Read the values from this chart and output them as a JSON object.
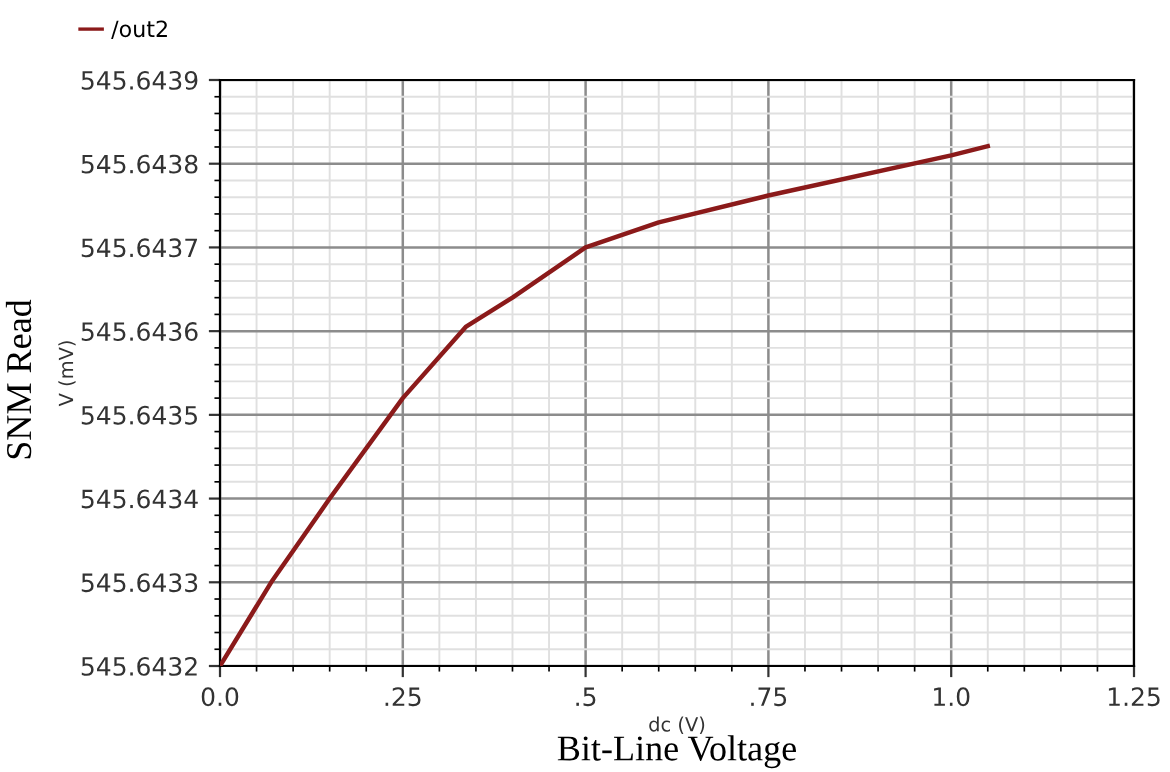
{
  "chart_data": {
    "type": "line",
    "xlabel": "dc (V)",
    "ylabel": "V (mV)",
    "annotations": [
      "Bit-Line Voltage",
      "SNM Read"
    ],
    "series": [
      {
        "name": "/out2",
        "color": "#8b1a1a",
        "x": [
          0.0,
          0.07,
          0.15,
          0.25,
          0.336,
          0.4,
          0.5,
          0.6,
          0.75,
          1.0,
          1.05
        ],
        "values": [
          545.6432,
          545.6433,
          545.6434,
          545.64352,
          545.643605,
          545.64364,
          545.6437,
          545.64373,
          545.643762,
          545.64381,
          545.643821
        ]
      }
    ],
    "xlim": [
      0.0,
      1.25
    ],
    "ylim": [
      545.6432,
      545.6439
    ],
    "xticks": [
      {
        "value": 0.0,
        "label": "0.0"
      },
      {
        "value": 0.25,
        "label": ".25"
      },
      {
        "value": 0.5,
        "label": ".5"
      },
      {
        "value": 0.75,
        "label": ".75"
      },
      {
        "value": 1.0,
        "label": "1.0"
      },
      1.25
    ],
    "yticks": [
      545.6432,
      545.6433,
      545.6434,
      545.6435,
      545.6436,
      545.6437,
      545.6438,
      545.6439
    ],
    "grid": true,
    "legend": "top left",
    "marker": "none",
    "line_style": "solid"
  }
}
